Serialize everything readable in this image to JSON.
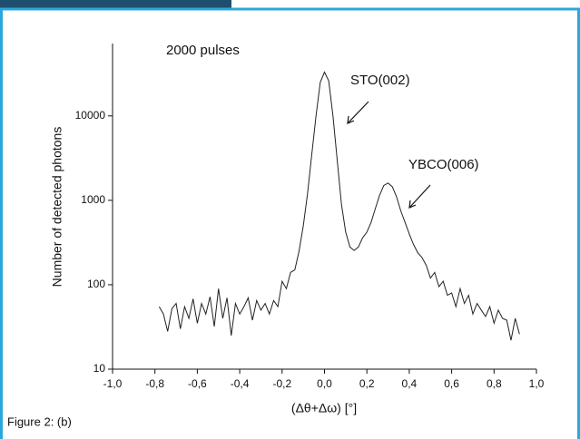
{
  "chart_data": {
    "type": "line",
    "log_y": true,
    "grid": false,
    "annotations": [
      "2000 pulses",
      "STO(002)",
      "YBCO(006)"
    ],
    "x_label": "(Δθ+Δω) [°]",
    "y_label": "Number of detected photons",
    "xlim": [
      -1.0,
      1.0
    ],
    "xticks": [
      {
        "value": -1.0,
        "label": "-1,0"
      },
      {
        "value": -0.8,
        "label": "-0,8"
      },
      {
        "value": -0.6,
        "label": "-0,6"
      },
      {
        "value": -0.4,
        "label": "-0,4"
      },
      {
        "value": -0.2,
        "label": "-0,2"
      },
      {
        "value": 0.0,
        "label": "0,0"
      },
      {
        "value": 0.2,
        "label": "0,2"
      },
      {
        "value": 0.4,
        "label": "0,4"
      },
      {
        "value": 0.6,
        "label": "0,6"
      },
      {
        "value": 0.8,
        "label": "0,8"
      },
      {
        "value": 1.0,
        "label": "1,0"
      }
    ],
    "ylim": [
      10,
      72000
    ],
    "yticks": [
      10,
      100,
      1000,
      10000
    ],
    "color": "#222222",
    "x": [
      -0.78,
      -0.76,
      -0.74,
      -0.72,
      -0.7,
      -0.68,
      -0.66,
      -0.64,
      -0.62,
      -0.6,
      -0.58,
      -0.56,
      -0.54,
      -0.52,
      -0.5,
      -0.48,
      -0.46,
      -0.44,
      -0.42,
      -0.4,
      -0.38,
      -0.36,
      -0.34,
      -0.32,
      -0.3,
      -0.28,
      -0.26,
      -0.24,
      -0.22,
      -0.2,
      -0.18,
      -0.16,
      -0.14,
      -0.12,
      -0.1,
      -0.08,
      -0.06,
      -0.04,
      -0.02,
      0.0,
      0.02,
      0.04,
      0.06,
      0.08,
      0.1,
      0.12,
      0.14,
      0.16,
      0.18,
      0.2,
      0.22,
      0.24,
      0.26,
      0.28,
      0.3,
      0.32,
      0.34,
      0.36,
      0.38,
      0.4,
      0.42,
      0.44,
      0.46,
      0.48,
      0.5,
      0.52,
      0.54,
      0.56,
      0.58,
      0.6,
      0.62,
      0.64,
      0.66,
      0.68,
      0.7,
      0.72,
      0.74,
      0.76,
      0.78,
      0.8,
      0.82,
      0.84,
      0.86,
      0.88,
      0.9,
      0.92
    ],
    "values": [
      55,
      45,
      28,
      52,
      60,
      30,
      55,
      40,
      68,
      35,
      60,
      45,
      72,
      32,
      90,
      40,
      70,
      25,
      60,
      45,
      55,
      70,
      38,
      65,
      50,
      60,
      45,
      65,
      55,
      110,
      90,
      140,
      150,
      250,
      500,
      1200,
      3500,
      10000,
      25000,
      33000,
      26000,
      10000,
      3000,
      900,
      420,
      280,
      255,
      280,
      360,
      420,
      550,
      800,
      1150,
      1500,
      1600,
      1450,
      1100,
      750,
      550,
      400,
      300,
      240,
      210,
      170,
      120,
      140,
      95,
      110,
      75,
      80,
      55,
      90,
      60,
      75,
      45,
      60,
      50,
      42,
      55,
      35,
      50,
      40,
      38,
      22,
      40,
      26
    ]
  },
  "caption": "Figure 2: (b)"
}
